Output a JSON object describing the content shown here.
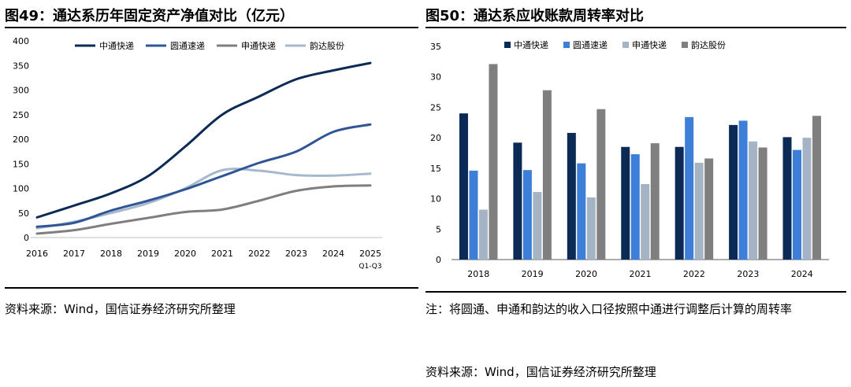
{
  "left_panel": {
    "title": "图49：通达系历年固定资产净值对比（亿元）",
    "source": "资料来源：Wind，国信证券经济研究所整理"
  },
  "right_panel": {
    "title": "图50：通达系应收账款周转率对比",
    "note": "注：将圆通、申通和韵达的收入口径按照中通进行调整后计算的周转率",
    "source": "资料来源：Wind，国信证券经济研究所整理"
  },
  "chart_data": [
    {
      "type": "line",
      "title": "通达系历年固定资产净值对比（亿元）",
      "x": [
        "2016",
        "2017",
        "2018",
        "2019",
        "2020",
        "2021",
        "2022",
        "2023",
        "2024",
        "2025"
      ],
      "x_sub": {
        "2025": "Q1-Q3"
      },
      "ylim": [
        0,
        400
      ],
      "yticks": [
        0,
        50,
        100,
        150,
        200,
        250,
        300,
        350,
        400
      ],
      "series": [
        {
          "name": "中通快递",
          "color": "#0B2A55",
          "values": [
            41,
            65,
            90,
            125,
            185,
            250,
            287,
            322,
            340,
            355
          ]
        },
        {
          "name": "圆通速递",
          "color": "#2F5597",
          "values": [
            22,
            30,
            55,
            75,
            98,
            125,
            152,
            175,
            215,
            230
          ]
        },
        {
          "name": "申通快递",
          "color": "#7F7F7F",
          "values": [
            8,
            15,
            28,
            40,
            52,
            57,
            75,
            95,
            104,
            106
          ]
        },
        {
          "name": "韵达股份",
          "color": "#A6B8CC",
          "values": [
            19,
            32,
            50,
            70,
            100,
            137,
            136,
            127,
            126,
            130
          ]
        }
      ]
    },
    {
      "type": "bar",
      "title": "通达系应收账款周转率对比",
      "categories": [
        "2018",
        "2019",
        "2020",
        "2021",
        "2022",
        "2023",
        "2024"
      ],
      "ylim": [
        0,
        35
      ],
      "yticks": [
        0,
        5,
        10,
        15,
        20,
        25,
        30,
        35
      ],
      "series": [
        {
          "name": "中通快递",
          "color": "#0B2A55",
          "values": [
            24.0,
            19.2,
            20.8,
            18.5,
            18.5,
            22.1,
            20.1
          ]
        },
        {
          "name": "圆通速递",
          "color": "#3D7FD8",
          "values": [
            14.6,
            14.7,
            15.8,
            17.3,
            23.4,
            22.8,
            18.0
          ]
        },
        {
          "name": "申通快递",
          "color": "#A5B4C4",
          "values": [
            8.2,
            11.1,
            10.2,
            12.4,
            15.9,
            19.4,
            20.0
          ]
        },
        {
          "name": "韵达股份",
          "color": "#7F7F7F",
          "values": [
            32.1,
            27.8,
            24.7,
            19.1,
            16.6,
            18.4,
            23.6
          ]
        }
      ]
    }
  ]
}
